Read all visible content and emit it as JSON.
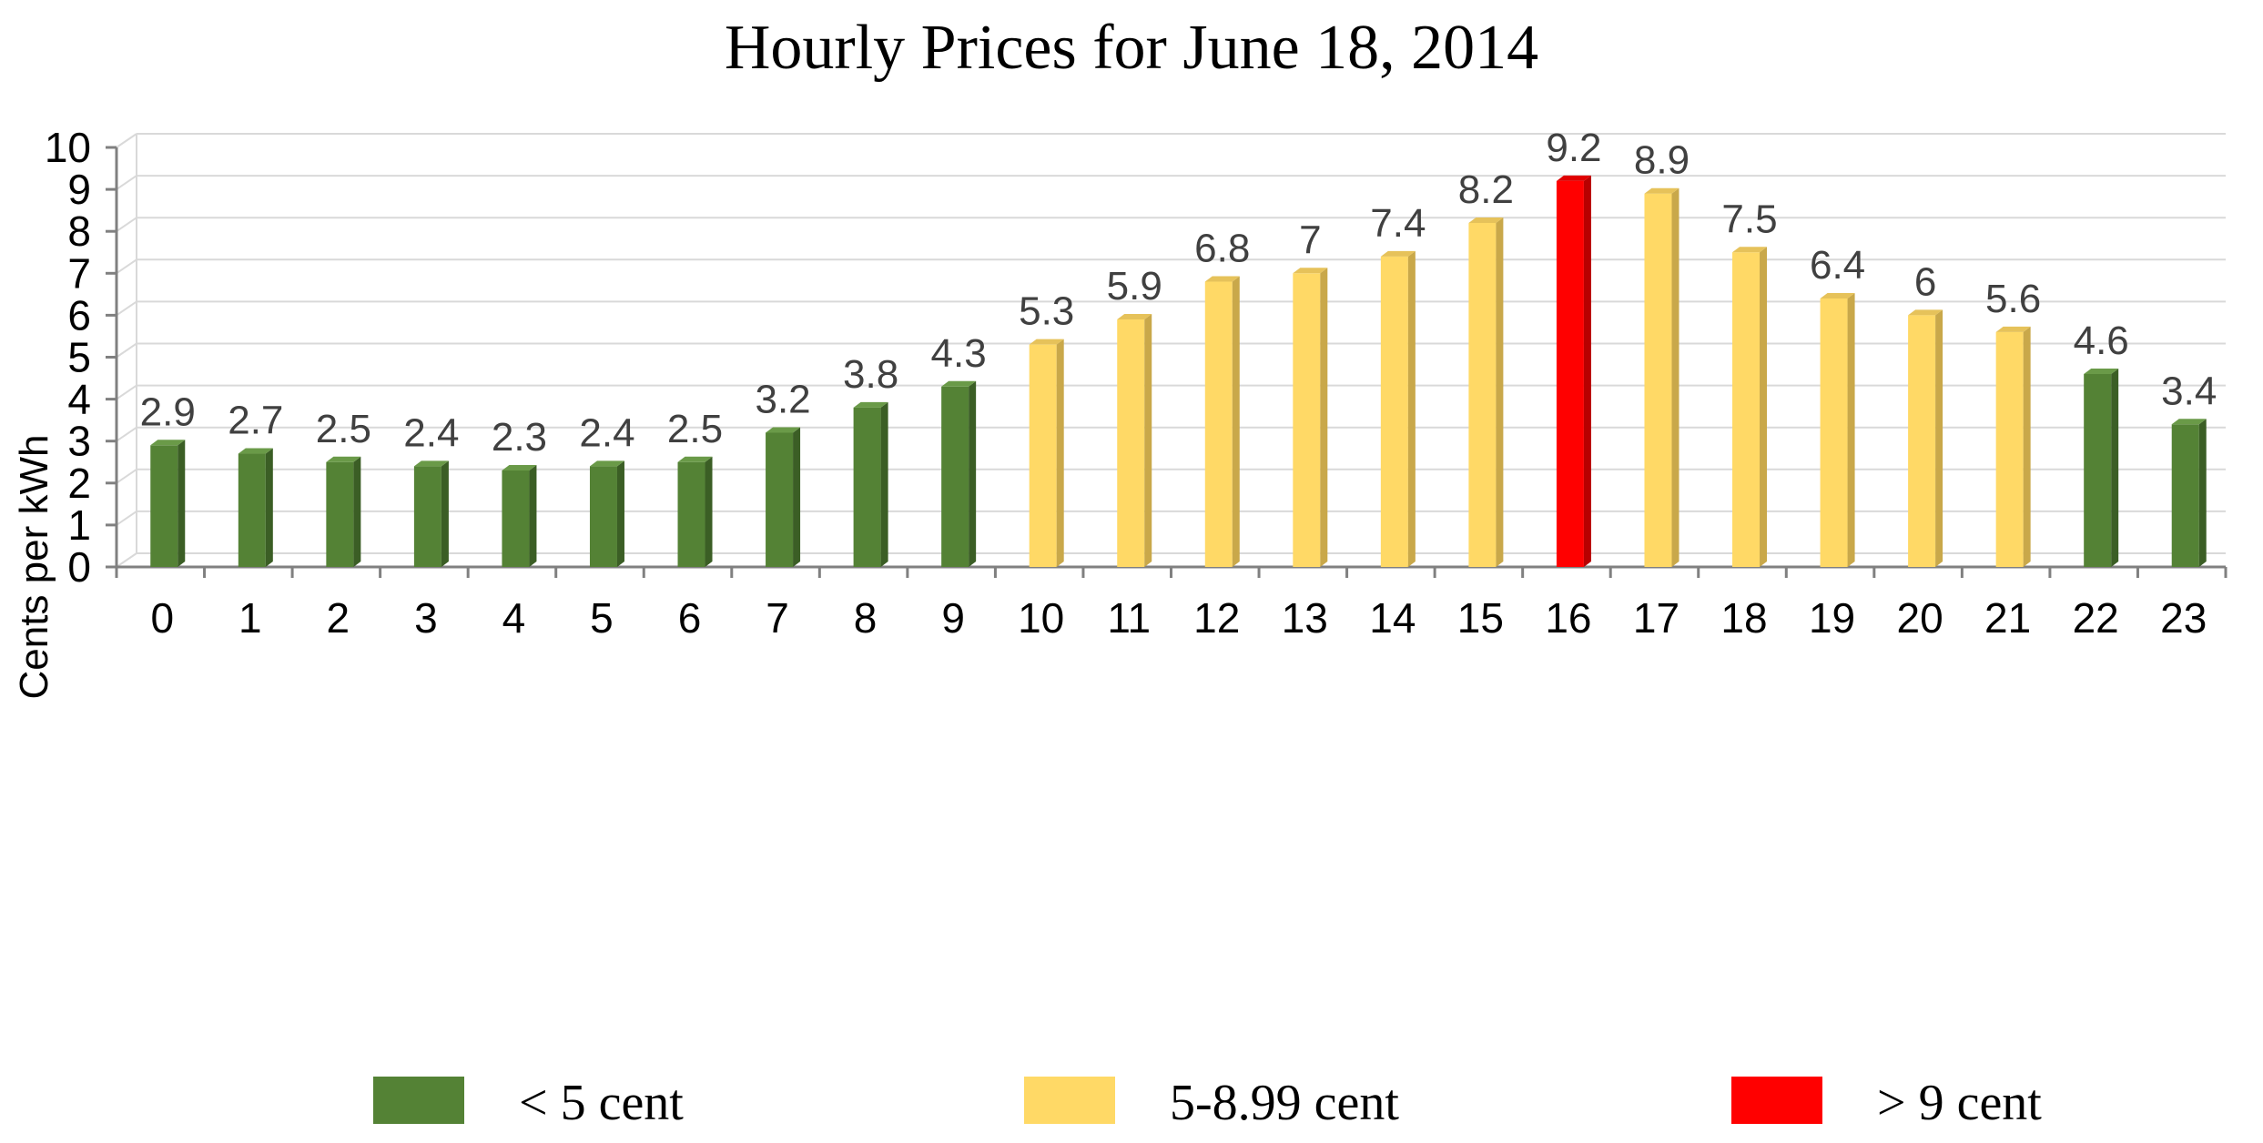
{
  "chart_data": {
    "type": "bar",
    "title": "Hourly Prices for June 18, 2014",
    "xlabel": "",
    "ylabel": "Cents per kWh",
    "ylim": [
      0,
      10
    ],
    "yticks": [
      "0",
      "1",
      "2",
      "3",
      "4",
      "5",
      "6",
      "7",
      "8",
      "9",
      "10"
    ],
    "grid": true,
    "categories": [
      "0",
      "1",
      "2",
      "3",
      "4",
      "5",
      "6",
      "7",
      "8",
      "9",
      "10",
      "11",
      "12",
      "13",
      "14",
      "15",
      "16",
      "17",
      "18",
      "19",
      "20",
      "21",
      "22",
      "23"
    ],
    "values": [
      2.9,
      2.7,
      2.5,
      2.4,
      2.3,
      2.4,
      2.5,
      3.2,
      3.8,
      4.3,
      5.3,
      5.9,
      6.8,
      7,
      7.4,
      8.2,
      9.2,
      8.9,
      7.5,
      6.4,
      6,
      5.6,
      4.6,
      3.4
    ],
    "value_labels": [
      "2.9",
      "2.7",
      "2.5",
      "2.4",
      "2.3",
      "2.4",
      "2.5",
      "3.2",
      "3.8",
      "4.3",
      "5.3",
      "5.9",
      "6.8",
      "7",
      "7.4",
      "8.2",
      "9.2",
      "8.9",
      "7.5",
      "6.4",
      "6",
      "5.6",
      "4.6",
      "3.4"
    ],
    "bar_classes": [
      "low",
      "low",
      "low",
      "low",
      "low",
      "low",
      "low",
      "low",
      "low",
      "low",
      "mid",
      "mid",
      "mid",
      "mid",
      "mid",
      "mid",
      "high",
      "mid",
      "mid",
      "mid",
      "mid",
      "mid",
      "low",
      "low"
    ],
    "legend_position": "bottom",
    "legend": [
      {
        "key": "low",
        "label": "< 5 cent",
        "color": "#548235",
        "side_color": "#3b5e25",
        "top_color": "#6a9a48"
      },
      {
        "key": "mid",
        "label": "5-8.99 cent",
        "color": "#ffd966",
        "side_color": "#c9a84a",
        "top_color": "#e6c25a"
      },
      {
        "key": "high",
        "label": "> 9 cent",
        "color": "#ff0000",
        "side_color": "#b80000",
        "top_color": "#e00000"
      }
    ]
  }
}
